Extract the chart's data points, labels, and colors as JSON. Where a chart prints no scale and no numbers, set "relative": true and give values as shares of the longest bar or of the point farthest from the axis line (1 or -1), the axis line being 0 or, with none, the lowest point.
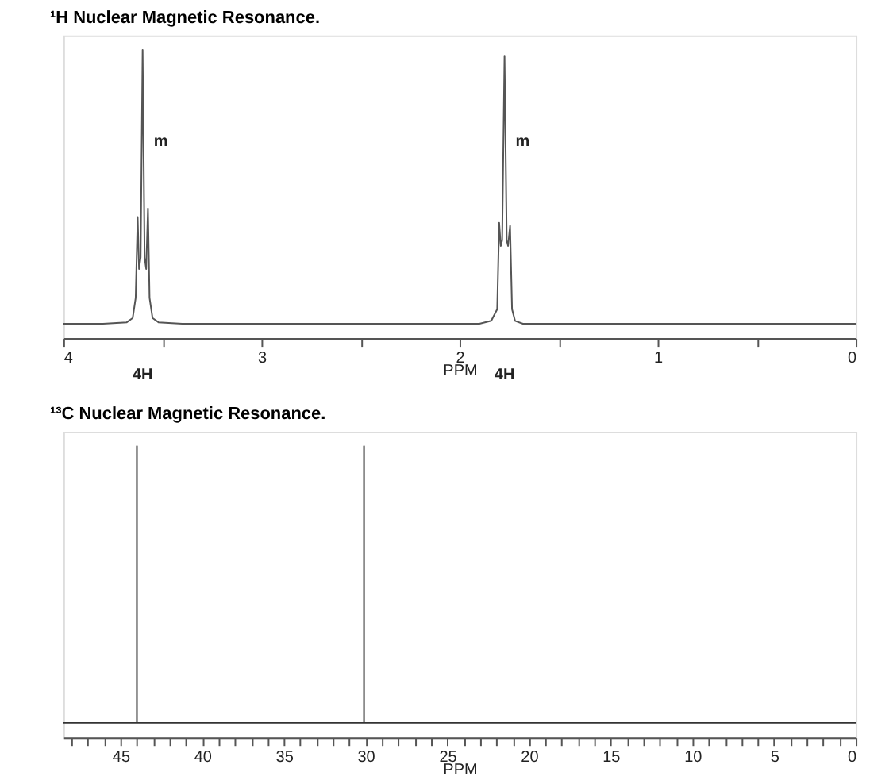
{
  "chart_data": [
    {
      "type": "line",
      "title": "¹H Nuclear Magnetic Resonance.",
      "xlabel": "PPM",
      "relative": true,
      "xlim": [
        4,
        0
      ],
      "xticks": [
        4,
        {
          "value": 3.5,
          "label": null
        },
        3,
        {
          "value": 2.5,
          "label": null
        },
        2,
        {
          "value": 1.5,
          "label": null
        },
        1,
        {
          "value": 0.5,
          "label": null
        },
        0
      ],
      "x": [
        4.0,
        3.8,
        3.68,
        3.65,
        3.635,
        3.625,
        3.618,
        3.61,
        3.6,
        3.59,
        3.582,
        3.573,
        3.565,
        3.55,
        3.52,
        3.4,
        2.5,
        1.9,
        1.84,
        1.81,
        1.8,
        1.792,
        1.785,
        1.773,
        1.762,
        1.755,
        1.745,
        1.735,
        1.72,
        1.68,
        0
      ],
      "series": [
        {
          "color": "#555555",
          "values": [
            0.05,
            0.05,
            0.055,
            0.07,
            0.14,
            0.42,
            0.24,
            0.28,
            1.0,
            0.28,
            0.24,
            0.45,
            0.14,
            0.07,
            0.055,
            0.05,
            0.05,
            0.05,
            0.06,
            0.1,
            0.4,
            0.32,
            0.34,
            0.98,
            0.34,
            0.32,
            0.39,
            0.1,
            0.06,
            0.05,
            0.05
          ]
        }
      ],
      "annotations": [
        "m",
        "m",
        "4H",
        "4H"
      ]
    },
    {
      "type": "line",
      "title": "¹³C Nuclear Magnetic Resonance.",
      "xlabel": "PPM",
      "relative": true,
      "xlim": [
        48.5,
        0
      ],
      "xticks": [
        {
          "value": 48,
          "label": null
        },
        {
          "value": 47,
          "label": null
        },
        {
          "value": 46,
          "label": null
        },
        45,
        {
          "value": 44,
          "label": null
        },
        {
          "value": 43,
          "label": null
        },
        {
          "value": 42,
          "label": null
        },
        {
          "value": 41,
          "label": null
        },
        40,
        {
          "value": 39,
          "label": null
        },
        {
          "value": 38,
          "label": null
        },
        {
          "value": 37,
          "label": null
        },
        {
          "value": 36,
          "label": null
        },
        35,
        {
          "value": 34,
          "label": null
        },
        {
          "value": 33,
          "label": null
        },
        {
          "value": 32,
          "label": null
        },
        {
          "value": 31,
          "label": null
        },
        30,
        {
          "value": 29,
          "label": null
        },
        {
          "value": 28,
          "label": null
        },
        {
          "value": 27,
          "label": null
        },
        {
          "value": 26,
          "label": null
        },
        25,
        {
          "value": 24,
          "label": null
        },
        {
          "value": 23,
          "label": null
        },
        {
          "value": 22,
          "label": null
        },
        {
          "value": 21,
          "label": null
        },
        20,
        {
          "value": 19,
          "label": null
        },
        {
          "value": 18,
          "label": null
        },
        {
          "value": 17,
          "label": null
        },
        {
          "value": 16,
          "label": null
        },
        15,
        {
          "value": 14,
          "label": null
        },
        {
          "value": 13,
          "label": null
        },
        {
          "value": 12,
          "label": null
        },
        {
          "value": 11,
          "label": null
        },
        10,
        {
          "value": 9,
          "label": null
        },
        {
          "value": 8,
          "label": null
        },
        {
          "value": 7,
          "label": null
        },
        {
          "value": 6,
          "label": null
        },
        5,
        {
          "value": 4,
          "label": null
        },
        {
          "value": 3,
          "label": null
        },
        {
          "value": 2,
          "label": null
        },
        {
          "value": 1,
          "label": null
        },
        0
      ],
      "x": [
        48.5,
        44.0,
        44.0,
        44.0,
        30.1,
        30.1,
        30.1,
        0
      ],
      "series": [
        {
          "color": "#333333",
          "values": [
            0.05,
            0.05,
            1,
            0.05,
            0.05,
            1,
            0.05,
            0.05
          ]
        }
      ]
    }
  ]
}
